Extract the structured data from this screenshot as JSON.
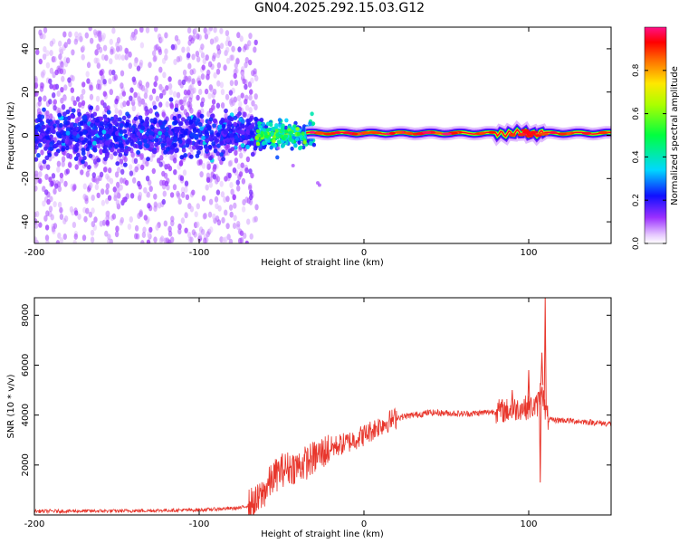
{
  "figure": {
    "title": "GN04.2025.292.15.03.G12"
  },
  "chart_data": [
    {
      "type": "heatmap",
      "title": "GN04.2025.292.15.03.G12",
      "xlabel": "Height of straight line (km)",
      "ylabel": "Frequency (Hz)",
      "xlim": [
        -200,
        150
      ],
      "ylim": [
        -50,
        50
      ],
      "xticks": [
        -200,
        -100,
        0,
        100
      ],
      "yticks": [
        -40,
        -20,
        0,
        20,
        40
      ],
      "colorbar": {
        "label": "Normalized spectral amplitude",
        "range": [
          0,
          1
        ],
        "ticks": [
          0.0,
          0.2,
          0.4,
          0.6,
          0.8
        ]
      },
      "features": [
        {
          "description": "scattered spectral energy",
          "x_range": [
            -200,
            -65
          ],
          "freq_range": [
            -50,
            50
          ],
          "amplitude": 0.15
        },
        {
          "description": "dense band near 0 Hz",
          "x_range": [
            -200,
            -65
          ],
          "freq_range": [
            -10,
            10
          ],
          "amplitude": 0.25
        },
        {
          "description": "narrowing band",
          "x_range": [
            -65,
            -30
          ],
          "freq_range": [
            -8,
            8
          ],
          "amplitude": 0.4
        },
        {
          "description": "strong carrier line near 1 Hz",
          "x_range": [
            -30,
            150
          ],
          "freq_center": 1,
          "amplitude": 0.95
        }
      ]
    },
    {
      "type": "line",
      "xlabel": "Height of straight line (km)",
      "ylabel": "SNR (10 * v/v)",
      "xlim": [
        -200,
        150
      ],
      "ylim": [
        0,
        8700
      ],
      "xticks": [
        -200,
        -100,
        0,
        100
      ],
      "yticks": [
        2000,
        4000,
        6000,
        8000
      ],
      "series": [
        {
          "name": "SNR",
          "color": "#e8362c",
          "x": [
            -200,
            -150,
            -100,
            -75,
            -65,
            -60,
            -55,
            -50,
            -45,
            -40,
            -35,
            -30,
            -20,
            -10,
            0,
            10,
            20,
            30,
            40,
            50,
            60,
            70,
            80,
            90,
            95,
            100,
            105,
            108,
            110,
            112,
            115,
            120,
            130,
            140,
            150
          ],
          "y": [
            150,
            160,
            200,
            280,
            500,
            1000,
            1500,
            1800,
            1900,
            1950,
            2100,
            2300,
            2700,
            2900,
            3200,
            3600,
            3900,
            4000,
            4100,
            4080,
            4050,
            4080,
            4150,
            4200,
            4300,
            4300,
            4350,
            5200,
            4200,
            3800,
            3800,
            3800,
            3750,
            3700,
            3650
          ]
        }
      ],
      "spikes": [
        {
          "x": 108,
          "y": 6500
        },
        {
          "x": 110,
          "y": 8700
        },
        {
          "x": 107,
          "y": 1300
        },
        {
          "x": 90,
          "y": 5000
        },
        {
          "x": 100,
          "y": 5800
        }
      ]
    }
  ]
}
